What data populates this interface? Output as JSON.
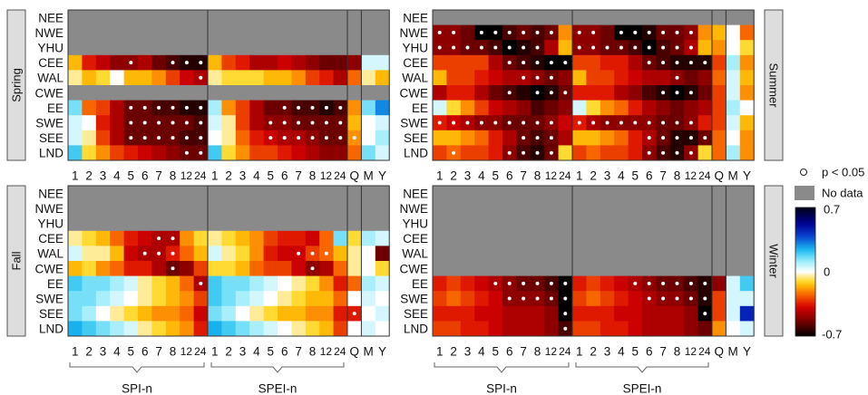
{
  "regions": [
    "NEE",
    "NWE",
    "YHU",
    "CEE",
    "WAL",
    "CWE",
    "EE",
    "SWE",
    "SEE",
    "LND"
  ],
  "x_labels": [
    "1",
    "2",
    "3",
    "4",
    "5",
    "6",
    "7",
    "8",
    "12",
    "24",
    "1",
    "2",
    "3",
    "4",
    "5",
    "6",
    "7",
    "8",
    "12",
    "24",
    "Q",
    "M",
    "Y"
  ],
  "legend": {
    "sig": "p < 0.05",
    "nodata": "No data",
    "vmax": "0.7",
    "vmid": "0",
    "vmin": "-0.7"
  },
  "group_labels": {
    "spi": "SPI-n",
    "spei": "SPEI-n"
  },
  "colors": {
    "nodata": "#8a8a8a",
    "frame": "#333333",
    "season_box": "#dddddd"
  },
  "chart_data": [
    {
      "type": "heatmap",
      "season": "Spring",
      "rows": [
        "NEE",
        "NWE",
        "YHU",
        "CEE",
        "WAL",
        "CWE",
        "EE",
        "SWE",
        "SEE",
        "LND"
      ],
      "cols": [
        "SPI-1",
        "SPI-2",
        "SPI-3",
        "SPI-4",
        "SPI-5",
        "SPI-6",
        "SPI-7",
        "SPI-8",
        "SPI-12",
        "SPI-24",
        "SPEI-1",
        "SPEI-2",
        "SPEI-3",
        "SPEI-4",
        "SPEI-5",
        "SPEI-6",
        "SPEI-7",
        "SPEI-8",
        "SPEI-12",
        "SPEI-24",
        "Q",
        "M",
        "Y"
      ],
      "nodata_rows": [
        "NEE",
        "NWE",
        "YHU",
        "CWE"
      ],
      "values": [
        [],
        [],
        [],
        [
          -0.15,
          -0.35,
          -0.42,
          -0.5,
          -0.5,
          -0.45,
          -0.55,
          -0.6,
          -0.65,
          -0.65,
          -0.15,
          -0.3,
          -0.35,
          -0.45,
          -0.45,
          -0.4,
          -0.45,
          -0.5,
          -0.55,
          -0.55,
          -0.5,
          0.05,
          0.05
        ],
        [
          -0.05,
          -0.15,
          -0.1,
          0.0,
          -0.15,
          -0.15,
          -0.2,
          -0.3,
          -0.4,
          -0.45,
          -0.05,
          -0.1,
          -0.1,
          -0.1,
          -0.15,
          -0.15,
          -0.2,
          -0.3,
          -0.35,
          -0.45,
          -0.25,
          -0.05,
          -0.15
        ],
        [],
        [
          0.15,
          -0.25,
          -0.3,
          -0.45,
          -0.55,
          -0.55,
          -0.6,
          -0.6,
          -0.65,
          -0.65,
          0.1,
          -0.2,
          -0.3,
          -0.45,
          -0.55,
          -0.55,
          -0.6,
          -0.6,
          -0.65,
          -0.6,
          -0.2,
          0.15,
          0.3
        ],
        [
          0.05,
          0.0,
          -0.35,
          -0.45,
          -0.55,
          -0.55,
          -0.55,
          -0.55,
          -0.55,
          -0.6,
          0.05,
          -0.05,
          -0.3,
          -0.45,
          -0.5,
          -0.5,
          -0.55,
          -0.55,
          -0.55,
          -0.55,
          -0.15,
          0.0,
          0.05
        ],
        [
          0.05,
          -0.05,
          -0.3,
          -0.45,
          -0.55,
          -0.55,
          -0.55,
          -0.55,
          -0.6,
          -0.6,
          0.0,
          -0.05,
          -0.25,
          -0.35,
          -0.4,
          -0.45,
          -0.45,
          -0.5,
          -0.55,
          -0.55,
          -0.2,
          0.0,
          0.1
        ],
        [
          0.2,
          -0.1,
          -0.2,
          -0.3,
          -0.35,
          -0.4,
          -0.45,
          -0.5,
          -0.55,
          -0.55,
          0.2,
          -0.1,
          -0.2,
          -0.3,
          -0.3,
          -0.35,
          -0.4,
          -0.45,
          -0.5,
          -0.5,
          -0.25,
          0.15,
          0.05
        ]
      ],
      "significant": [
        [],
        [],
        [],
        [
          4,
          7,
          8,
          9
        ],
        [
          9
        ],
        [],
        [
          4,
          5,
          6,
          7,
          8,
          9,
          15,
          16,
          17,
          18,
          19
        ],
        [
          4,
          5,
          6,
          7,
          8,
          9,
          14,
          15,
          16,
          17,
          18,
          19
        ],
        [
          4,
          5,
          6,
          7,
          8,
          9,
          14,
          15,
          16,
          17,
          18,
          19,
          20
        ],
        [
          8,
          9
        ]
      ]
    },
    {
      "type": "heatmap",
      "season": "Summer",
      "rows": [
        "NEE",
        "NWE",
        "YHU",
        "CEE",
        "WAL",
        "CWE",
        "EE",
        "SWE",
        "SEE",
        "LND"
      ],
      "cols": [
        "SPI-1",
        "SPI-2",
        "SPI-3",
        "SPI-4",
        "SPI-5",
        "SPI-6",
        "SPI-7",
        "SPI-8",
        "SPI-12",
        "SPI-24",
        "SPEI-1",
        "SPEI-2",
        "SPEI-3",
        "SPEI-4",
        "SPEI-5",
        "SPEI-6",
        "SPEI-7",
        "SPEI-8",
        "SPEI-12",
        "SPEI-24",
        "Q",
        "M",
        "Y"
      ],
      "nodata_rows": [
        "NEE"
      ],
      "values": [
        [],
        [
          -0.5,
          -0.5,
          -0.55,
          -0.7,
          -0.7,
          -0.6,
          -0.55,
          -0.6,
          -0.55,
          -0.2,
          -0.5,
          -0.5,
          -0.55,
          -0.7,
          -0.7,
          -0.65,
          -0.55,
          -0.55,
          -0.5,
          -0.2,
          -0.15,
          0.0,
          -0.25
        ],
        [
          -0.5,
          -0.5,
          -0.55,
          -0.55,
          -0.6,
          -0.7,
          -0.65,
          -0.6,
          -0.45,
          -0.15,
          -0.5,
          -0.5,
          -0.55,
          -0.55,
          -0.6,
          -0.7,
          -0.6,
          -0.55,
          -0.45,
          -0.15,
          -0.2,
          0.0,
          -0.1
        ],
        [
          -0.3,
          -0.3,
          -0.3,
          -0.3,
          -0.45,
          -0.55,
          -0.6,
          -0.65,
          -0.7,
          -0.7,
          -0.3,
          -0.3,
          -0.35,
          -0.35,
          -0.45,
          -0.55,
          -0.6,
          -0.65,
          -0.65,
          -0.65,
          -0.3,
          0.1,
          -0.2
        ],
        [
          -0.15,
          -0.3,
          -0.3,
          -0.35,
          -0.4,
          -0.45,
          -0.45,
          -0.5,
          -0.55,
          -0.5,
          -0.15,
          -0.3,
          -0.3,
          -0.35,
          -0.4,
          -0.45,
          -0.45,
          -0.5,
          -0.55,
          -0.5,
          -0.25,
          0.05,
          -0.15
        ],
        [
          -0.45,
          -0.35,
          -0.35,
          -0.45,
          -0.55,
          -0.6,
          -0.65,
          -0.7,
          -0.65,
          -0.55,
          -0.35,
          -0.35,
          -0.35,
          -0.45,
          -0.5,
          -0.6,
          -0.65,
          -0.7,
          -0.65,
          -0.55,
          -0.3,
          0.05,
          -0.2
        ],
        [
          0.05,
          -0.1,
          -0.2,
          -0.3,
          -0.4,
          -0.45,
          -0.5,
          -0.6,
          -0.55,
          -0.5,
          0.05,
          -0.1,
          -0.2,
          -0.25,
          -0.35,
          -0.45,
          -0.5,
          -0.55,
          -0.5,
          -0.45,
          -0.3,
          0.1,
          0.0
        ],
        [
          -0.35,
          -0.4,
          -0.45,
          -0.5,
          -0.5,
          -0.55,
          -0.55,
          -0.55,
          -0.5,
          -0.4,
          -0.35,
          -0.45,
          -0.5,
          -0.5,
          -0.5,
          -0.5,
          -0.55,
          -0.55,
          -0.5,
          -0.35,
          -0.3,
          0.05,
          -0.15
        ],
        [
          -0.15,
          -0.15,
          -0.2,
          -0.25,
          -0.35,
          -0.45,
          -0.55,
          -0.6,
          -0.55,
          -0.45,
          -0.15,
          -0.15,
          -0.2,
          -0.25,
          -0.35,
          -0.45,
          -0.55,
          -0.65,
          -0.65,
          -0.55,
          -0.25,
          0.0,
          -0.2
        ],
        [
          -0.3,
          -0.25,
          -0.3,
          -0.3,
          -0.35,
          -0.5,
          -0.6,
          -0.65,
          -0.55,
          -0.1,
          -0.3,
          -0.25,
          -0.3,
          -0.3,
          -0.35,
          -0.5,
          -0.6,
          -0.65,
          -0.5,
          -0.1,
          -0.25,
          0.1,
          -0.2
        ]
      ],
      "significant": [
        [],
        [
          0,
          1,
          3,
          4,
          5,
          6,
          7,
          8,
          10,
          11,
          13,
          14,
          15,
          16,
          17,
          18
        ],
        [
          0,
          1,
          2,
          3,
          4,
          5,
          6,
          7,
          10,
          11,
          12,
          13,
          14,
          15,
          16,
          17,
          18
        ],
        [
          5,
          6,
          7,
          8,
          9,
          15,
          16,
          17,
          18,
          19
        ],
        [
          6,
          7,
          8,
          17
        ],
        [
          5,
          7,
          8,
          9,
          16,
          17,
          18
        ],
        [],
        [
          0,
          1,
          2,
          3,
          4,
          5,
          6,
          7,
          8,
          10,
          11,
          12,
          13,
          14,
          15,
          16,
          17,
          18
        ],
        [
          6,
          7,
          8,
          15,
          16,
          17,
          18,
          19
        ],
        [
          1,
          5,
          6,
          7,
          8,
          15,
          16,
          17,
          18
        ]
      ]
    },
    {
      "type": "heatmap",
      "season": "Fall",
      "rows": [
        "NEE",
        "NWE",
        "YHU",
        "CEE",
        "WAL",
        "CWE",
        "EE",
        "SWE",
        "SEE",
        "LND"
      ],
      "cols": [
        "SPI-1",
        "SPI-2",
        "SPI-3",
        "SPI-4",
        "SPI-5",
        "SPI-6",
        "SPI-7",
        "SPI-8",
        "SPI-12",
        "SPI-24",
        "SPEI-1",
        "SPEI-2",
        "SPEI-3",
        "SPEI-4",
        "SPEI-5",
        "SPEI-6",
        "SPEI-7",
        "SPEI-8",
        "SPEI-12",
        "SPEI-24",
        "Q",
        "M",
        "Y"
      ],
      "nodata_rows": [
        "NEE",
        "NWE",
        "YHU"
      ],
      "values": [
        [],
        [],
        [],
        [
          -0.05,
          -0.1,
          -0.15,
          -0.25,
          -0.35,
          -0.4,
          -0.45,
          -0.45,
          -0.2,
          -0.1,
          -0.05,
          -0.1,
          -0.15,
          -0.2,
          -0.3,
          -0.35,
          -0.35,
          -0.4,
          -0.25,
          0.15,
          -0.1,
          0.1,
          0.05
        ],
        [
          0.05,
          -0.05,
          -0.05,
          -0.15,
          -0.4,
          -0.45,
          -0.45,
          -0.35,
          -0.25,
          -0.15,
          0.05,
          -0.05,
          -0.1,
          -0.2,
          -0.35,
          -0.4,
          -0.4,
          -0.3,
          -0.25,
          -0.15,
          -0.05,
          0.0,
          -0.55
        ],
        [
          -0.15,
          -0.1,
          -0.2,
          -0.25,
          -0.35,
          -0.35,
          -0.45,
          -0.55,
          -0.5,
          -0.3,
          -0.1,
          -0.1,
          -0.15,
          -0.25,
          -0.3,
          -0.3,
          -0.4,
          -0.5,
          -0.45,
          -0.25,
          -0.05,
          0.0,
          -0.1
        ],
        [
          0.2,
          0.15,
          0.15,
          0.1,
          0.05,
          -0.05,
          -0.1,
          -0.15,
          -0.25,
          -0.45,
          0.2,
          0.15,
          0.15,
          0.1,
          0.05,
          0.0,
          -0.05,
          -0.1,
          -0.2,
          -0.35,
          -0.25,
          0.1,
          0.05
        ],
        [
          0.15,
          0.15,
          0.1,
          0.05,
          0.0,
          -0.05,
          -0.1,
          -0.15,
          -0.2,
          -0.3,
          0.2,
          0.15,
          0.1,
          0.05,
          0.0,
          -0.05,
          -0.1,
          -0.15,
          -0.15,
          -0.25,
          0.0,
          0.05,
          0.0
        ],
        [
          0.15,
          0.1,
          0.0,
          -0.05,
          -0.1,
          -0.15,
          -0.2,
          -0.2,
          -0.25,
          -0.4,
          0.15,
          0.1,
          0.0,
          -0.05,
          -0.1,
          -0.15,
          -0.15,
          -0.2,
          -0.2,
          -0.35,
          -0.35,
          0.0,
          0.05
        ],
        [
          0.25,
          0.2,
          0.15,
          0.1,
          0.05,
          -0.05,
          -0.1,
          -0.15,
          -0.2,
          -0.35,
          0.25,
          0.2,
          0.15,
          0.1,
          0.05,
          0.0,
          -0.05,
          -0.1,
          -0.15,
          -0.3,
          0.0,
          0.05,
          0.0
        ]
      ],
      "significant": [
        [],
        [],
        [],
        [
          6,
          7
        ],
        [
          5,
          6,
          7,
          16,
          17,
          18
        ],
        [
          7,
          17
        ],
        [
          9
        ],
        [],
        [
          20
        ],
        []
      ]
    },
    {
      "type": "heatmap",
      "season": "Winter",
      "rows": [
        "NEE",
        "NWE",
        "YHU",
        "CEE",
        "WAL",
        "CWE",
        "EE",
        "SWE",
        "SEE",
        "LND"
      ],
      "cols": [
        "SPI-1",
        "SPI-2",
        "SPI-3",
        "SPI-4",
        "SPI-5",
        "SPI-6",
        "SPI-7",
        "SPI-8",
        "SPI-12",
        "SPI-24",
        "SPEI-1",
        "SPEI-2",
        "SPEI-3",
        "SPEI-4",
        "SPEI-5",
        "SPEI-6",
        "SPEI-7",
        "SPEI-8",
        "SPEI-12",
        "SPEI-24",
        "Q",
        "M",
        "Y"
      ],
      "nodata_rows": [
        "NEE",
        "NWE",
        "YHU",
        "CEE",
        "WAL",
        "CWE"
      ],
      "values": [
        [],
        [],
        [],
        [],
        [],
        [],
        [
          -0.35,
          -0.3,
          -0.35,
          -0.4,
          -0.45,
          -0.5,
          -0.55,
          -0.55,
          -0.6,
          -0.7,
          -0.35,
          -0.3,
          -0.35,
          -0.4,
          -0.45,
          -0.5,
          -0.55,
          -0.55,
          -0.6,
          -0.65,
          -0.5,
          0.05,
          0.2
        ],
        [
          -0.3,
          -0.25,
          -0.3,
          -0.35,
          -0.4,
          -0.5,
          -0.5,
          -0.5,
          -0.55,
          -0.7,
          -0.3,
          -0.25,
          -0.3,
          -0.35,
          -0.4,
          -0.45,
          -0.5,
          -0.5,
          -0.55,
          -0.65,
          -0.3,
          0.05,
          0.05
        ],
        [
          -0.35,
          -0.35,
          -0.35,
          -0.4,
          -0.4,
          -0.45,
          -0.45,
          -0.45,
          -0.5,
          -0.7,
          -0.35,
          -0.35,
          -0.35,
          -0.4,
          -0.4,
          -0.45,
          -0.45,
          -0.45,
          -0.5,
          -0.7,
          -0.3,
          0.05,
          0.45
        ],
        [
          -0.3,
          -0.3,
          -0.35,
          -0.35,
          -0.4,
          -0.45,
          -0.45,
          -0.45,
          -0.5,
          -0.6,
          -0.3,
          -0.3,
          -0.35,
          -0.35,
          -0.4,
          -0.45,
          -0.45,
          -0.45,
          -0.5,
          -0.55,
          -0.2,
          0.0,
          0.05
        ]
      ],
      "significant": [
        [],
        [],
        [],
        [],
        [],
        [],
        [
          4,
          5,
          6,
          7,
          8,
          9,
          14,
          15,
          16,
          17,
          18,
          19
        ],
        [
          5,
          6,
          7,
          8,
          9,
          15,
          16,
          17,
          18,
          19
        ],
        [
          9,
          19
        ],
        [
          9
        ]
      ]
    }
  ]
}
